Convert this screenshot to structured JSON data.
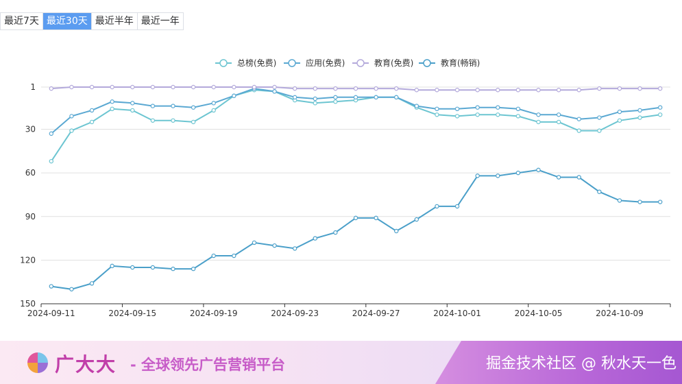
{
  "tabs": [
    {
      "label": "最近7天",
      "active": false
    },
    {
      "label": "最近30天",
      "active": true
    },
    {
      "label": "最近半年",
      "active": false
    },
    {
      "label": "最近一年",
      "active": false
    }
  ],
  "chart_data": {
    "type": "line",
    "y_inverted": true,
    "ylim": [
      1,
      150
    ],
    "y_ticks": [
      1,
      30,
      60,
      90,
      120,
      150
    ],
    "x": [
      "2024-09-11",
      "2024-09-12",
      "2024-09-13",
      "2024-09-14",
      "2024-09-15",
      "2024-09-16",
      "2024-09-17",
      "2024-09-18",
      "2024-09-19",
      "2024-09-20",
      "2024-09-21",
      "2024-09-22",
      "2024-09-23",
      "2024-09-24",
      "2024-09-25",
      "2024-09-26",
      "2024-09-27",
      "2024-09-28",
      "2024-09-29",
      "2024-09-30",
      "2024-10-01",
      "2024-10-02",
      "2024-10-03",
      "2024-10-04",
      "2024-10-05",
      "2024-10-06",
      "2024-10-07",
      "2024-10-08",
      "2024-10-09",
      "2024-10-10",
      "2024-10-11"
    ],
    "x_tick_labels": [
      "2024-09-11",
      "2024-09-15",
      "2024-09-19",
      "2024-09-23",
      "2024-09-27",
      "2024-10-01",
      "2024-10-05",
      "2024-10-09"
    ],
    "legend_position": "top",
    "series": [
      {
        "name": "总榜(免费)",
        "color": "#6cc5d1",
        "values": [
          52,
          31,
          25,
          16,
          17,
          24,
          24,
          25,
          17,
          7,
          3,
          4,
          10,
          12,
          11,
          10,
          8,
          8,
          15,
          20,
          21,
          20,
          20,
          21,
          25,
          25,
          31,
          31,
          24,
          22,
          20
        ]
      },
      {
        "name": "应用(免费)",
        "color": "#5aa8d2",
        "values": [
          33,
          21,
          17,
          11,
          12,
          14,
          14,
          15,
          12,
          7,
          2,
          4,
          8,
          9,
          8,
          8,
          8,
          8,
          14,
          16,
          16,
          15,
          15,
          16,
          20,
          20,
          23,
          22,
          18,
          17,
          15
        ]
      },
      {
        "name": "教育(免费)",
        "color": "#b3a9db",
        "values": [
          2,
          1,
          1,
          1,
          1,
          1,
          1,
          1,
          1,
          1,
          1,
          1,
          2,
          2,
          2,
          2,
          2,
          2,
          3,
          3,
          3,
          3,
          3,
          3,
          3,
          3,
          3,
          2,
          2,
          2,
          2
        ]
      },
      {
        "name": "教育(畅销)",
        "color": "#4a9fc9",
        "values": [
          138,
          140,
          136,
          124,
          125,
          125,
          126,
          126,
          117,
          117,
          108,
          110,
          112,
          105,
          101,
          91,
          91,
          100,
          92,
          83,
          83,
          62,
          62,
          60,
          58,
          63,
          63,
          73,
          79,
          80,
          80
        ]
      }
    ]
  },
  "banner": {
    "brand": "广大大",
    "slogan": "- 全球领先广告营销平台",
    "watermark": "掘金技术社区 @ 秋水天一色",
    "logo_colors": [
      "#e0569b",
      "#7ac4ea",
      "#f3a23c",
      "#9b6fd6"
    ]
  }
}
